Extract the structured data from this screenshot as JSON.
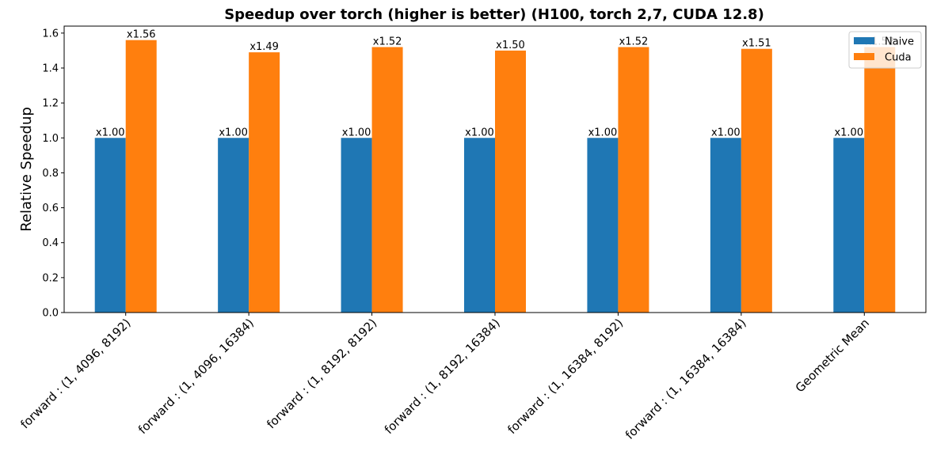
{
  "chart_data": {
    "type": "bar",
    "title": "Speedup over torch (higher is better) (H100, torch 2,7, CUDA 12.8)",
    "xlabel": "",
    "ylabel": "Relative Speedup",
    "ylim": [
      0,
      1.64
    ],
    "yticks": [
      0.0,
      0.2,
      0.4,
      0.6,
      0.8,
      1.0,
      1.2,
      1.4,
      1.6
    ],
    "ytick_labels": [
      "0.0",
      "0.2",
      "0.4",
      "0.6",
      "0.8",
      "1.0",
      "1.2",
      "1.4",
      "1.6"
    ],
    "grid": false,
    "legend_position": "top-right",
    "categories": [
      "forward : (1, 4096, 8192)",
      "forward : (1, 4096, 16384)",
      "forward : (1, 8192, 8192)",
      "forward : (1, 8192, 16384)",
      "forward : (1, 16384, 8192)",
      "forward : (1, 16384, 16384)",
      "Geometric Mean"
    ],
    "series": [
      {
        "name": "Naive",
        "color": "#1f77b4",
        "values": [
          1.0,
          1.0,
          1.0,
          1.0,
          1.0,
          1.0,
          1.0
        ],
        "labels": [
          "x1.00",
          "x1.00",
          "x1.00",
          "x1.00",
          "x1.00",
          "x1.00",
          "x1.00"
        ]
      },
      {
        "name": "Cuda",
        "color": "#ff7f0e",
        "values": [
          1.56,
          1.49,
          1.52,
          1.5,
          1.52,
          1.51,
          1.52
        ],
        "labels": [
          "x1.56",
          "x1.49",
          "x1.52",
          "x1.50",
          "x1.52",
          "x1.51",
          "x1.52"
        ]
      }
    ]
  }
}
